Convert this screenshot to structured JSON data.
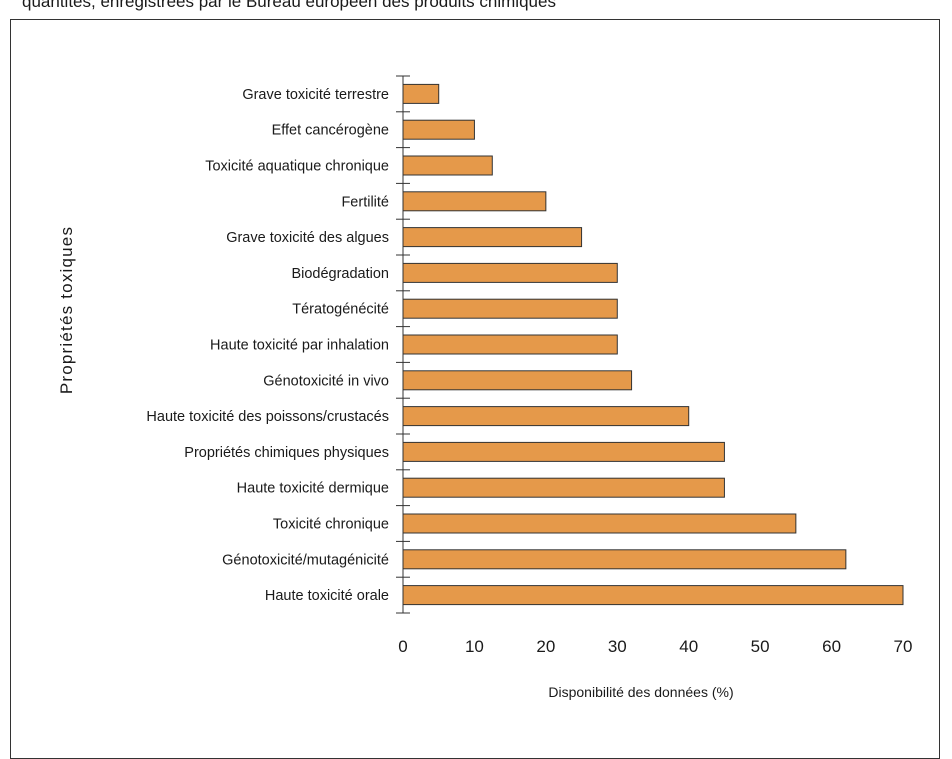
{
  "caption": "quantités, enregistrées par le Bureau européen des produits chimiques",
  "chart_data": {
    "type": "bar",
    "orientation": "horizontal",
    "title": "",
    "xlabel": "Disponibilité des données (%)",
    "ylabel": "Propriétés toxiques",
    "xlim": [
      0,
      70
    ],
    "xticks": [
      0,
      10,
      20,
      30,
      40,
      50,
      60,
      70
    ],
    "grid": false,
    "bar_color": "#e5994a",
    "categories": [
      "Grave toxicité terrestre",
      "Effet cancérogène",
      "Toxicité aquatique chronique",
      "Fertilité",
      "Grave toxicité des algues",
      "Biodégradation",
      "Tératogénécité",
      "Haute toxicité par inhalation",
      "Génotoxicité in vivo",
      "Haute toxicité des poissons/crustacés",
      "Propriétés chimiques physiques",
      "Haute toxicité dermique",
      "Toxicité chronique",
      "Génotoxicité/mutagénicité",
      "Haute toxicité orale"
    ],
    "values": [
      5,
      10,
      12.5,
      20,
      25,
      30,
      30,
      30,
      32,
      40,
      45,
      45,
      55,
      62,
      70
    ]
  }
}
